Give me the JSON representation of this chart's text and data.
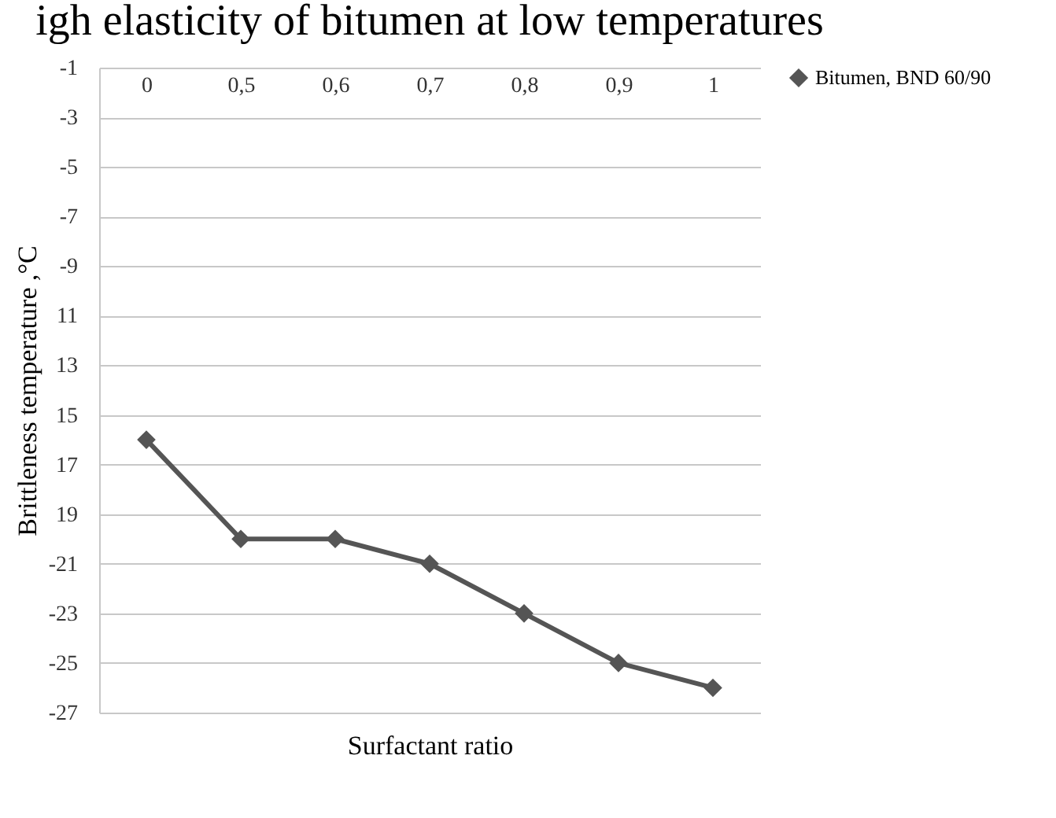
{
  "chart_data": {
    "type": "line",
    "title": "igh elasticity of bitumen at low temperatures",
    "xlabel": "Surfactant ratio",
    "ylabel": "Brittleness temperature ,°C",
    "categories": [
      "0",
      "0,5",
      "0,6",
      "0,7",
      "0,8",
      "0,9",
      "1"
    ],
    "series": [
      {
        "name": "Bitumen, BND 60/90",
        "color": "#555555",
        "values": [
          -16,
          -20,
          -20,
          -21,
          -23,
          -25,
          -26
        ]
      }
    ],
    "ylim": [
      -27,
      -1
    ],
    "yticks": [
      -1,
      -3,
      -5,
      -7,
      -9,
      {
        "value": -11,
        "label": "11"
      },
      {
        "value": -13,
        "label": "13"
      },
      {
        "value": -15,
        "label": "15"
      },
      {
        "value": -17,
        "label": "17"
      },
      {
        "value": -19,
        "label": "19"
      },
      -21,
      -23,
      -25,
      -27
    ],
    "grid": "y",
    "legend": "right",
    "marker": "diamond",
    "line_style": "solid"
  }
}
